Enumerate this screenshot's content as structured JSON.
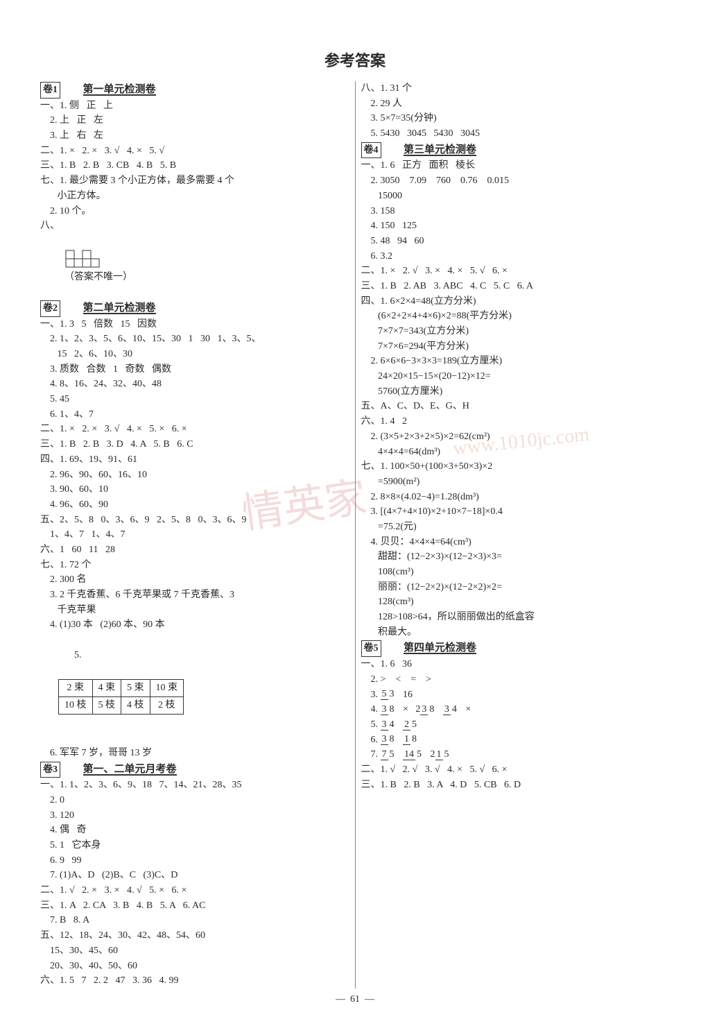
{
  "title": "参考答案",
  "pageNumber": "61",
  "watermark1": "情英家",
  "watermark2": "www.1010jc.com",
  "left": {
    "j1": {
      "label": "卷1",
      "title": "第一单元检测卷",
      "lines": [
        "一、1. 侧   正   上",
        "    2. 上   正   左",
        "    3. 上   右   左",
        "二、1. ×   2. ×   3. √   4. ×   5. √",
        "三、1. B   2. B   3. CB   4. B   5. B",
        "七、1. 最少需要 3 个小正方体，最多需要 4 个",
        "       小正方体。",
        "    2. 10 个。",
        "八、"
      ],
      "diagramNote": "（答案不唯一）"
    },
    "j2": {
      "label": "卷2",
      "title": "第二单元检测卷",
      "lines": [
        "一、1. 3   5   倍数   15   因数",
        "    2. 1、2、3、5、6、10、15、30   1   30   1、3、5、",
        "       15   2、6、10、30",
        "    3. 质数   合数   1   奇数   偶数",
        "    4. 8、16、24、32、40、48",
        "    5. 45",
        "    6. 1、4、7",
        "二、1. ×   2. ×   3. √   4. ×   5. ×   6. ×",
        "三、1. B   2. B   3. D   4. A   5. B   6. C",
        "四、1. 69、19、91、61",
        "    2. 96、90、60、16、10",
        "    3. 90、60、10",
        "    4. 96、60、90",
        "五、2、5、8   0、3、6、9   2、5、8   0、3、6、9",
        "    1、4、7   1、4、7",
        "六、1   60   11   28",
        "七、1. 72 个",
        "    2. 300 名",
        "    3. 2 千克香蕉、6 千克苹果或 7 千克香蕉、3",
        "       千克苹果",
        "    4. (1)30 本   (2)60 本、90 本"
      ],
      "tableLabel": "    5.",
      "table": {
        "rows": [
          [
            "2 束",
            "4 束",
            "5 束",
            "10 束"
          ],
          [
            "10 枝",
            "5 枝",
            "4 枝",
            "2 枝"
          ]
        ]
      },
      "after": [
        "    6. 军军 7 岁，哥哥 13 岁"
      ]
    },
    "j3": {
      "label": "卷3",
      "title": "第一、二单元月考卷",
      "lines": [
        "一、1. 1、2、3、6、9、18   7、14、21、28、35",
        "    2. 0",
        "    3. 120",
        "    4. 偶   奇",
        "    5. 1   它本身",
        "    6. 9   99",
        "    7. (1)A、D   (2)B、C   (3)C、D",
        "二、1. √   2. ×   3. ×   4. √   5. ×   6. ×",
        "三、1. A   2. CA   3. B   4. B   5. A   6. AC",
        "    7. B   8. A",
        "五、12、18、24、30、42、48、54、60",
        "    15、30、45、60",
        "    20、30、40、50、60",
        "六、1. 5   7   2. 2   47   3. 36   4. 99"
      ]
    }
  },
  "right": {
    "top": [
      "八、1. 31 个",
      "    2. 29 人",
      "    3. 5×7=35(分钟)",
      "    5. 5430   3045   5430   3045"
    ],
    "j4": {
      "label": "卷4",
      "title": "第三单元检测卷",
      "lines": [
        "一、1. 6   正方   面积   棱长",
        "    2. 3050    7.09    760    0.76    0.015",
        "       15000",
        "    3. 158",
        "    4. 150   125",
        "    5. 48   94   60",
        "    6. 3.2",
        "二、1. ×   2. √   3. ×   4. ×   5. √   6. ×",
        "三、1. B   2. AB   3. ABC   4. C   5. C   6. A",
        "四、1. 6×2×4=48(立方分米)",
        "       (6×2+2×4+4×6)×2=88(平方分米)",
        "       7×7×7=343(立方分米)",
        "       7×7×6=294(平方分米)",
        "    2. 6×6×6−3×3×3=189(立方厘米)",
        "       24×20×15−15×(20−12)×12=",
        "       5760(立方厘米)",
        "五、A、C、D、E、G、H",
        "六、1. 4   2",
        "    2. (3×5+2×3+2×5)×2=62(cm²)",
        "       4×4×4=64(dm³)",
        "七、1. 100×50+(100×3+50×3)×2",
        "       =5900(m²)",
        "    2. 8×8×(4.02−4)=1.28(dm³)",
        "    3. [(4×7+4×10)×2+10×7−18]×0.4",
        "       =75.2(元)",
        "    4. 贝贝：4×4×4=64(cm³)",
        "       甜甜：(12−2×3)×(12−2×3)×3=",
        "       108(cm³)",
        "       丽丽：(12−2×2)×(12−2×2)×2=",
        "       128(cm³)",
        "       128>108>64，所以丽丽做出的纸盒容",
        "       积最大。"
      ]
    },
    "j5": {
      "label": "卷5",
      "title": "第四单元检测卷",
      "lines": [
        "一、1. 6   36",
        "    2. >    <    =    >"
      ],
      "fracLines": [
        {
          "prefix": "    3. ",
          "fracs": [
            {
              "n": "5",
              "d": "3"
            }
          ],
          "suffix": "   16"
        },
        {
          "prefix": "    4. ",
          "fracs": [
            {
              "n": "3",
              "d": "8"
            }
          ],
          "mid": "   ×   2",
          "fracs2": [
            {
              "n": "3",
              "d": "8"
            }
          ],
          "mid2": "   ",
          "fracs3": [
            {
              "n": "3",
              "d": "4"
            }
          ],
          "suffix": "   ×"
        },
        {
          "prefix": "    5. ",
          "fracs": [
            {
              "n": "3",
              "d": "4"
            }
          ],
          "mid": "   ",
          "fracs2": [
            {
              "n": "2",
              "d": "5"
            }
          ],
          "suffix": ""
        },
        {
          "prefix": "    6. ",
          "fracs": [
            {
              "n": "3",
              "d": "8"
            }
          ],
          "mid": "   ",
          "fracs2": [
            {
              "n": "1",
              "d": "8"
            }
          ],
          "suffix": ""
        },
        {
          "prefix": "    7. ",
          "fracs": [
            {
              "n": "7",
              "d": "5"
            }
          ],
          "mid": "   ",
          "fracs2": [
            {
              "n": "14",
              "d": "5"
            }
          ],
          "mid2": "   2",
          "fracs3": [
            {
              "n": "1",
              "d": "5"
            }
          ],
          "suffix": ""
        }
      ],
      "after": [
        "二、1. √   2. √   3. √   4. ×   5. √   6. ×",
        "三、1. B   2. B   3. A   4. D   5. CB   6. D"
      ]
    }
  }
}
